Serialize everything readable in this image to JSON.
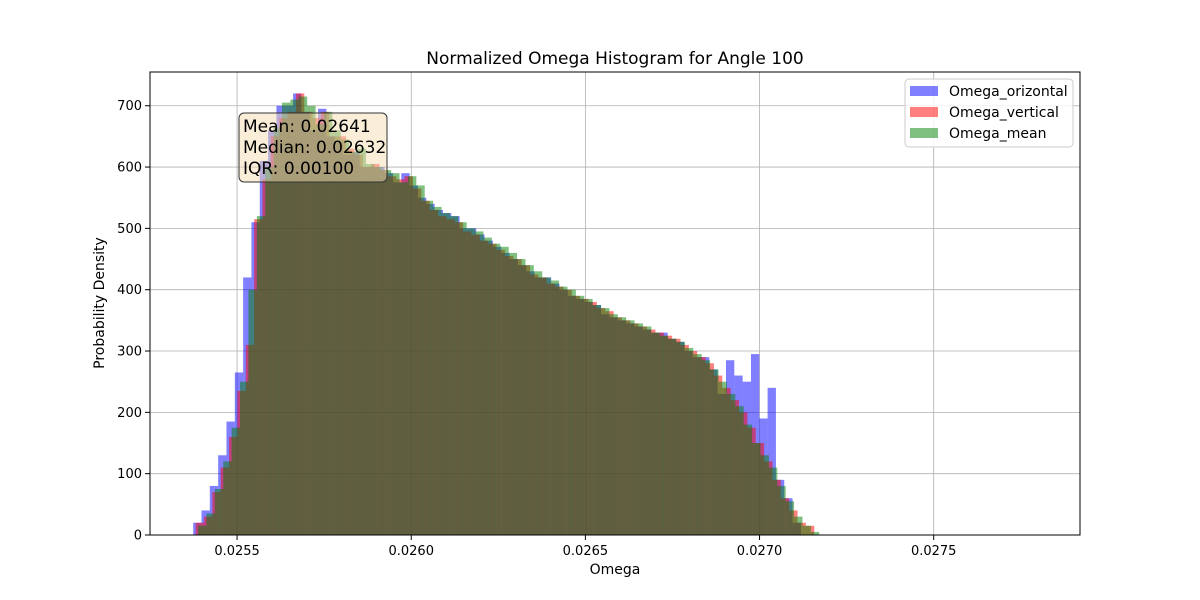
{
  "chart_data": {
    "type": "bar",
    "title": "Normalized Omega Histogram for Angle 100",
    "xlabel": "Omega",
    "ylabel": "Probability Density",
    "xlim": [
      0.02525,
      0.02792
    ],
    "ylim": [
      0,
      755
    ],
    "xticks": [
      {
        "value": 0.0255,
        "label": "0.0255"
      },
      {
        "value": 0.026,
        "label": "0.0260"
      },
      {
        "value": 0.0265,
        "label": "0.0265"
      },
      {
        "value": 0.027,
        "label": "0.0270"
      },
      {
        "value": 0.0275,
        "label": "0.0275"
      }
    ],
    "yticks": [
      {
        "value": 0,
        "label": "0"
      },
      {
        "value": 100,
        "label": "100"
      },
      {
        "value": 200,
        "label": "200"
      },
      {
        "value": 300,
        "label": "300"
      },
      {
        "value": 400,
        "label": "400"
      },
      {
        "value": 500,
        "label": "500"
      },
      {
        "value": 600,
        "label": "600"
      },
      {
        "value": 700,
        "label": "700"
      }
    ],
    "grid": true,
    "legend_position": "top-right",
    "stats_box": {
      "lines": [
        "Mean: 0.02641",
        "Median: 0.02632",
        "IQR: 0.00100"
      ],
      "position": "upper-left"
    },
    "series": [
      {
        "name": "Omega_orizontal",
        "color": "#0000ff",
        "start": 0.025374,
        "bin_width": 2.39e-05,
        "values": [
          20,
          40,
          80,
          130,
          185,
          265,
          420,
          510,
          610,
          660,
          700,
          700,
          720,
          690,
          660,
          695,
          650,
          640,
          620,
          625,
          600,
          600,
          600,
          590,
          575,
          590,
          570,
          550,
          540,
          530,
          525,
          520,
          500,
          500,
          490,
          480,
          470,
          460,
          450,
          440,
          430,
          420,
          420,
          410,
          400,
          390,
          385,
          380,
          375,
          360,
          355,
          350,
          345,
          340,
          335,
          330,
          330,
          320,
          315,
          300,
          290,
          290,
          270,
          230,
          285,
          260,
          250,
          295,
          190,
          240,
          90,
          60,
          20,
          0
        ]
      },
      {
        "name": "Omega_vertical",
        "color": "#ff0000",
        "start": 0.025381,
        "bin_width": 2.4e-05,
        "values": [
          20,
          30,
          70,
          110,
          160,
          235,
          310,
          515,
          580,
          650,
          680,
          690,
          720,
          690,
          680,
          690,
          650,
          650,
          630,
          620,
          600,
          605,
          595,
          585,
          580,
          585,
          565,
          545,
          530,
          520,
          515,
          510,
          495,
          490,
          480,
          475,
          465,
          455,
          450,
          440,
          425,
          420,
          410,
          405,
          400,
          390,
          385,
          380,
          370,
          365,
          355,
          350,
          345,
          340,
          335,
          330,
          325,
          320,
          310,
          300,
          290,
          280,
          260,
          240,
          220,
          200,
          175,
          150,
          120,
          90,
          60,
          40,
          20,
          15
        ]
      },
      {
        "name": "Omega_mean",
        "color": "#008000",
        "start": 0.025388,
        "bin_width": 2.41e-05,
        "values": [
          15,
          35,
          75,
          120,
          175,
          250,
          400,
          520,
          600,
          665,
          705,
          710,
          715,
          700,
          670,
          690,
          660,
          645,
          625,
          630,
          605,
          600,
          595,
          590,
          575,
          585,
          570,
          545,
          535,
          525,
          520,
          510,
          500,
          495,
          485,
          475,
          470,
          460,
          450,
          440,
          430,
          420,
          415,
          405,
          400,
          390,
          385,
          375,
          370,
          360,
          355,
          350,
          345,
          340,
          330,
          325,
          320,
          315,
          305,
          295,
          285,
          270,
          250,
          230,
          210,
          180,
          150,
          130,
          110,
          80,
          55,
          30,
          15,
          5
        ]
      }
    ]
  }
}
